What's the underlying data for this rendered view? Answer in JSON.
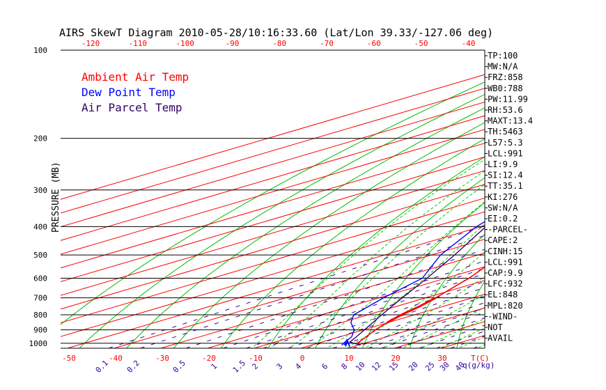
{
  "chart_data": {
    "type": "line",
    "title": "AIRS SkewT Diagram 2010-05-28/10:16:33.60 (Lat/Lon 39.33/-127.06 deg)",
    "ylabel": "PRESSURE (MB)",
    "y_scale": "log",
    "ylim": [
      1050,
      100
    ],
    "xlim": [
      -50,
      40
    ],
    "pressure_ticks": [
      100,
      200,
      300,
      400,
      500,
      600,
      700,
      800,
      900,
      1000
    ],
    "bottom_temp_ticks": [
      "-50",
      "-40",
      "-30",
      "-20",
      "-10",
      "0",
      "10",
      "20",
      "30"
    ],
    "top_temp_ticks": [
      "-120",
      "-110",
      "-100",
      "-90",
      "-80",
      "-70",
      "-60",
      "-50",
      "-40"
    ],
    "temp_unit": "T(C)",
    "mixing_ratio_ticks": [
      "0.1",
      "0.2",
      "0.5",
      "1",
      "1.5",
      "2",
      "3",
      "4",
      "6",
      "8",
      "10",
      "12",
      "15",
      "20",
      "25",
      "30",
      "40"
    ],
    "mixing_ratio_unit": "q(g/kg)",
    "legend": [
      "Ambient Air Temp",
      "Dew Point Temp",
      "Air Parcel Temp"
    ],
    "legend_placement": "top-left",
    "series": [
      {
        "name": "Ambient Air Temp",
        "color": "#ff0000",
        "points": [
          [
            1015,
            10.5
          ],
          [
            1000,
            8.5
          ],
          [
            950,
            5.6
          ],
          [
            900,
            2.5
          ],
          [
            850,
            -0.2
          ],
          [
            800,
            -2.8
          ],
          [
            750,
            -5.0
          ],
          [
            700,
            -7.8
          ],
          [
            650,
            -11.3
          ],
          [
            600,
            -15.0
          ],
          [
            500,
            -24.8
          ],
          [
            400,
            -37.0
          ],
          [
            300,
            -50.0
          ],
          [
            250,
            -56.5
          ],
          [
            200,
            -60.5
          ],
          [
            170,
            -61.0
          ],
          [
            150,
            -60.5
          ],
          [
            130,
            -58.5
          ],
          [
            115,
            -57.0
          ],
          [
            100,
            -55.0
          ]
        ]
      },
      {
        "name": "Dew Point Temp",
        "color": "#0000ff",
        "points": [
          [
            1015,
            6.5
          ],
          [
            1000,
            5.5
          ],
          [
            950,
            2.5
          ],
          [
            900,
            -2.0
          ],
          [
            850,
            -8.0
          ],
          [
            800,
            -13.0
          ],
          [
            700,
            -19.0
          ],
          [
            600,
            -25.0
          ],
          [
            500,
            -38.0
          ],
          [
            400,
            -51.0
          ],
          [
            300,
            -64.5
          ],
          [
            250,
            -68.0
          ],
          [
            200,
            -71.5
          ],
          [
            150,
            -79.0
          ],
          [
            100,
            -86.0
          ]
        ]
      },
      {
        "name": "Air Parcel Temp",
        "color": "#330066",
        "points": [
          [
            1015,
            10.5
          ],
          [
            991,
            6.0
          ],
          [
            950,
            3.5
          ],
          [
            900,
            0.2
          ],
          [
            850,
            -3.3
          ],
          [
            800,
            -7.0
          ],
          [
            700,
            -15.0
          ],
          [
            600,
            -24.0
          ],
          [
            500,
            -35.0
          ],
          [
            400,
            -49.0
          ],
          [
            300,
            -67.0
          ],
          [
            250,
            -77.5
          ],
          [
            200,
            -90.0
          ],
          [
            150,
            -104.5
          ],
          [
            100,
            -120.0
          ]
        ]
      }
    ],
    "grid": true,
    "wind_barbs": [
      [
        1000,
        6.2
      ],
      [
        1010,
        7.3
      ]
    ]
  },
  "indices": [
    "TP:100",
    "MW:N/A",
    "FRZ:858",
    "WB0:788",
    "PW:11.99",
    "RH:53.6",
    "MAXT:13.4",
    "TH:5463",
    "L57:5.3",
    "LCL:991",
    "LI:9.9",
    "SI:12.4",
    "TT:35.1",
    "KI:276",
    "SW:N/A",
    "EI:0.2",
    "-PARCEL-",
    "CAPE:2",
    "CINH:15",
    "LCL:991",
    "CAP:9.9",
    "LFC:932",
    "EL:848",
    "MPL:820",
    "-WIND-",
    "NOT",
    "AVAIL"
  ],
  "colors": {
    "isotherm": "#ff0000",
    "dry_adiabat": "#00bb00",
    "moist_adiabat": "#00cc00",
    "mixing_ratio": "#330099",
    "isobar": "#000000",
    "bottom_ticks": "#ff0000",
    "top_ticks": "#ff0000",
    "mixing_ticks": "#330099"
  }
}
